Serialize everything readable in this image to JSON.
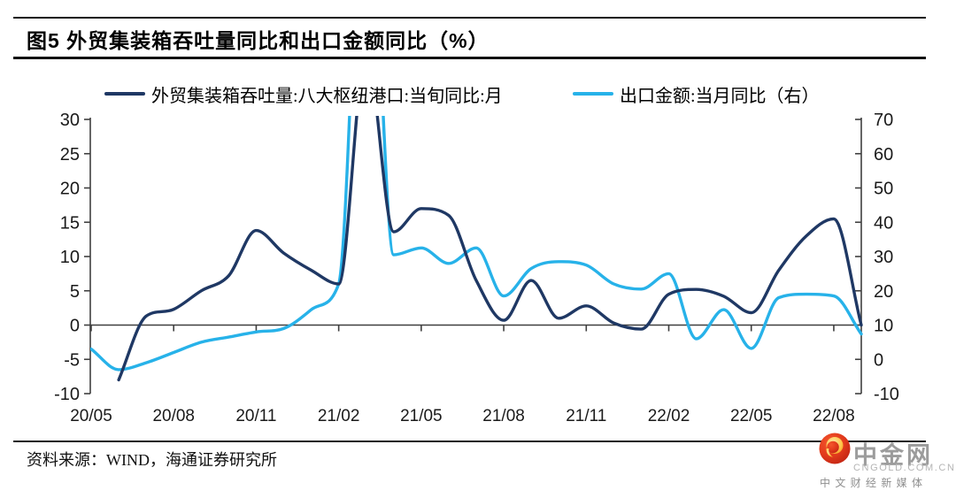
{
  "figure": {
    "title": "图5  外贸集装箱吞吐量同比和出口金额同比（%）"
  },
  "legend": [
    {
      "label": "外贸集装箱吞吐量:八大枢纽港口:当旬同比:月",
      "color": "#1F3864"
    },
    {
      "label": "出口金额:当月同比（右）",
      "color": "#27B2E9"
    }
  ],
  "chart_data": {
    "type": "line",
    "months": [
      "20/05",
      "20/06",
      "20/07",
      "20/08",
      "20/09",
      "20/10",
      "20/11",
      "20/12",
      "21/01",
      "21/02",
      "21/03",
      "21/04",
      "21/05",
      "21/06",
      "21/07",
      "21/08",
      "21/09",
      "21/10",
      "21/11",
      "21/12",
      "22/01",
      "22/02",
      "22/03",
      "22/04",
      "22/05",
      "22/06",
      "22/07",
      "22/08",
      "22/09"
    ],
    "x_tick_labels": [
      "20/05",
      "20/08",
      "20/11",
      "21/02",
      "21/05",
      "21/08",
      "21/11",
      "22/02",
      "22/05",
      "22/08"
    ],
    "left_axis": {
      "ticks": [
        30,
        25,
        20,
        15,
        10,
        5,
        0,
        -5,
        -10
      ],
      "range": [
        -10,
        30
      ]
    },
    "right_axis": {
      "ticks": [
        70,
        60,
        50,
        40,
        30,
        20,
        10,
        0,
        -10
      ],
      "range": [
        -10,
        70
      ]
    },
    "grid": false,
    "series": [
      {
        "name": "外贸集装箱吞吐量:八大枢纽港口:当旬同比:月",
        "axis": "left",
        "color": "#1F3864",
        "values": [
          null,
          -8,
          1.3,
          2.3,
          5,
          7.2,
          13.8,
          10.5,
          8,
          6,
          40,
          13.6,
          17,
          16,
          6.5,
          0.7,
          6.5,
          1,
          2.8,
          0.3,
          -0.6,
          4.5,
          5.2,
          4.2,
          1.8,
          8,
          13,
          15.5,
          0
        ]
      },
      {
        "name": "出口金额:当月同比（右）",
        "axis": "right",
        "color": "#27B2E9",
        "values": [
          3,
          -3,
          -1,
          2,
          5,
          6.5,
          8,
          9,
          14.5,
          22,
          155,
          30.5,
          32.5,
          28,
          32.5,
          18.5,
          26.5,
          28.5,
          27.5,
          22,
          20.5,
          25,
          6,
          14.5,
          3.2,
          18,
          19,
          18.5,
          7.4
        ]
      }
    ]
  },
  "footer": {
    "source": "资料来源：WIND，海通证券研究所"
  },
  "logo": {
    "name": "中金网",
    "domain": "CNGOLD.COM.CN",
    "tagline": "中 文 财 经 新 媒 体"
  }
}
